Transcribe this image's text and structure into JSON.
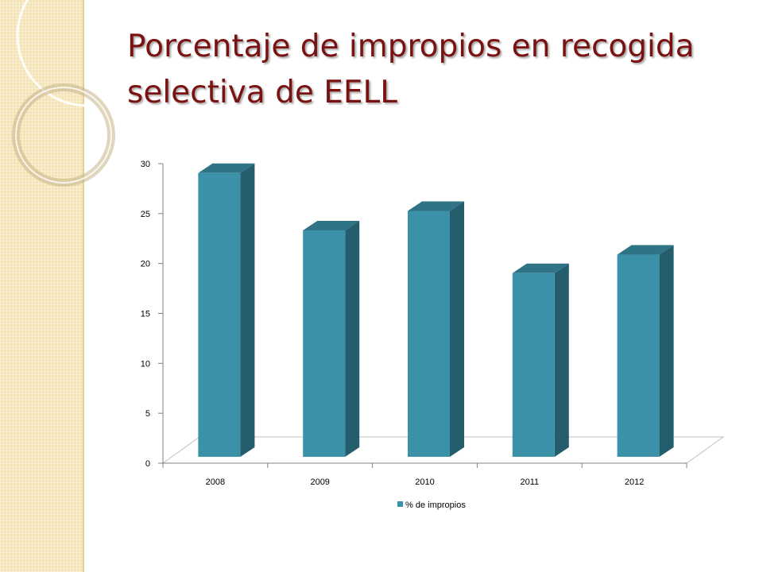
{
  "slide": {
    "title": "Porcentaje de impropios en recogida selectiva de EELL"
  },
  "colors": {
    "bar_front": "#3a91a8",
    "bar_side": "#245e6c",
    "bar_top": "#2f7386",
    "title": "#7a1212",
    "strip": "#f4e3b4"
  },
  "chart_data": {
    "type": "bar",
    "categories": [
      "2008",
      "2009",
      "2010",
      "2011",
      "2012"
    ],
    "series": [
      {
        "name": "% de impropios",
        "values": [
          29.2,
          23.3,
          25.3,
          18.9,
          20.8
        ]
      }
    ],
    "ylim": [
      0,
      30
    ],
    "yticks": [
      0,
      5,
      10,
      15,
      20,
      25,
      30
    ],
    "legend_position": "bottom",
    "style": "3d-column",
    "grid": false
  }
}
